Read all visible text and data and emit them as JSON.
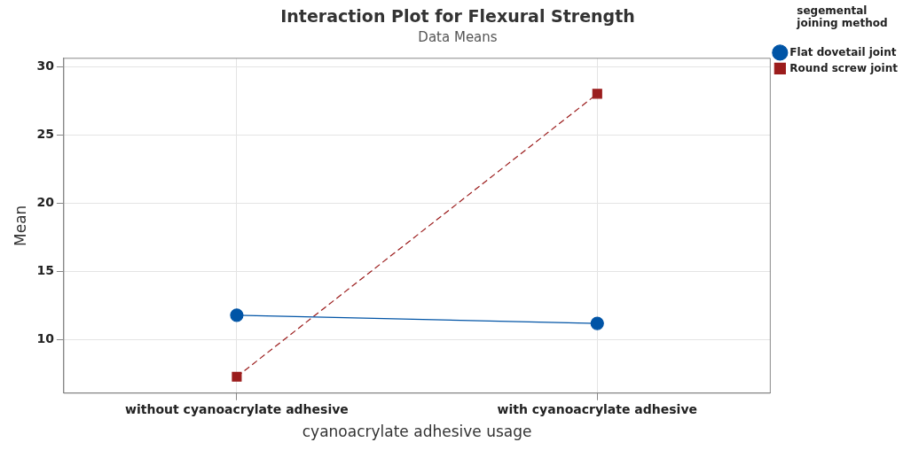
{
  "chart_data": {
    "type": "line",
    "title": "Interaction Plot for Flexural Strength",
    "subtitle": "Data Means",
    "xlabel": "cyanoacrylate adhesive usage",
    "ylabel": "Mean",
    "legend_title": "segemental joining method",
    "categories": [
      "without cyanoacrylate adhesive",
      "with cyanoacrylate adhesive"
    ],
    "series": [
      {
        "name": "Flat dovetail joint",
        "color": "#0054a6",
        "values": [
          11.8,
          11.2
        ],
        "marker": "circle",
        "line_style": "solid"
      },
      {
        "name": "Round screw joint",
        "color": "#9b1c1c",
        "values": [
          7.3,
          28.0
        ],
        "marker": "square",
        "line_style": "dashed"
      }
    ],
    "ylim": [
      6.1,
      30.6
    ],
    "yticks": [
      10,
      15,
      20,
      25,
      30
    ],
    "grid": true,
    "legend": "top right"
  }
}
